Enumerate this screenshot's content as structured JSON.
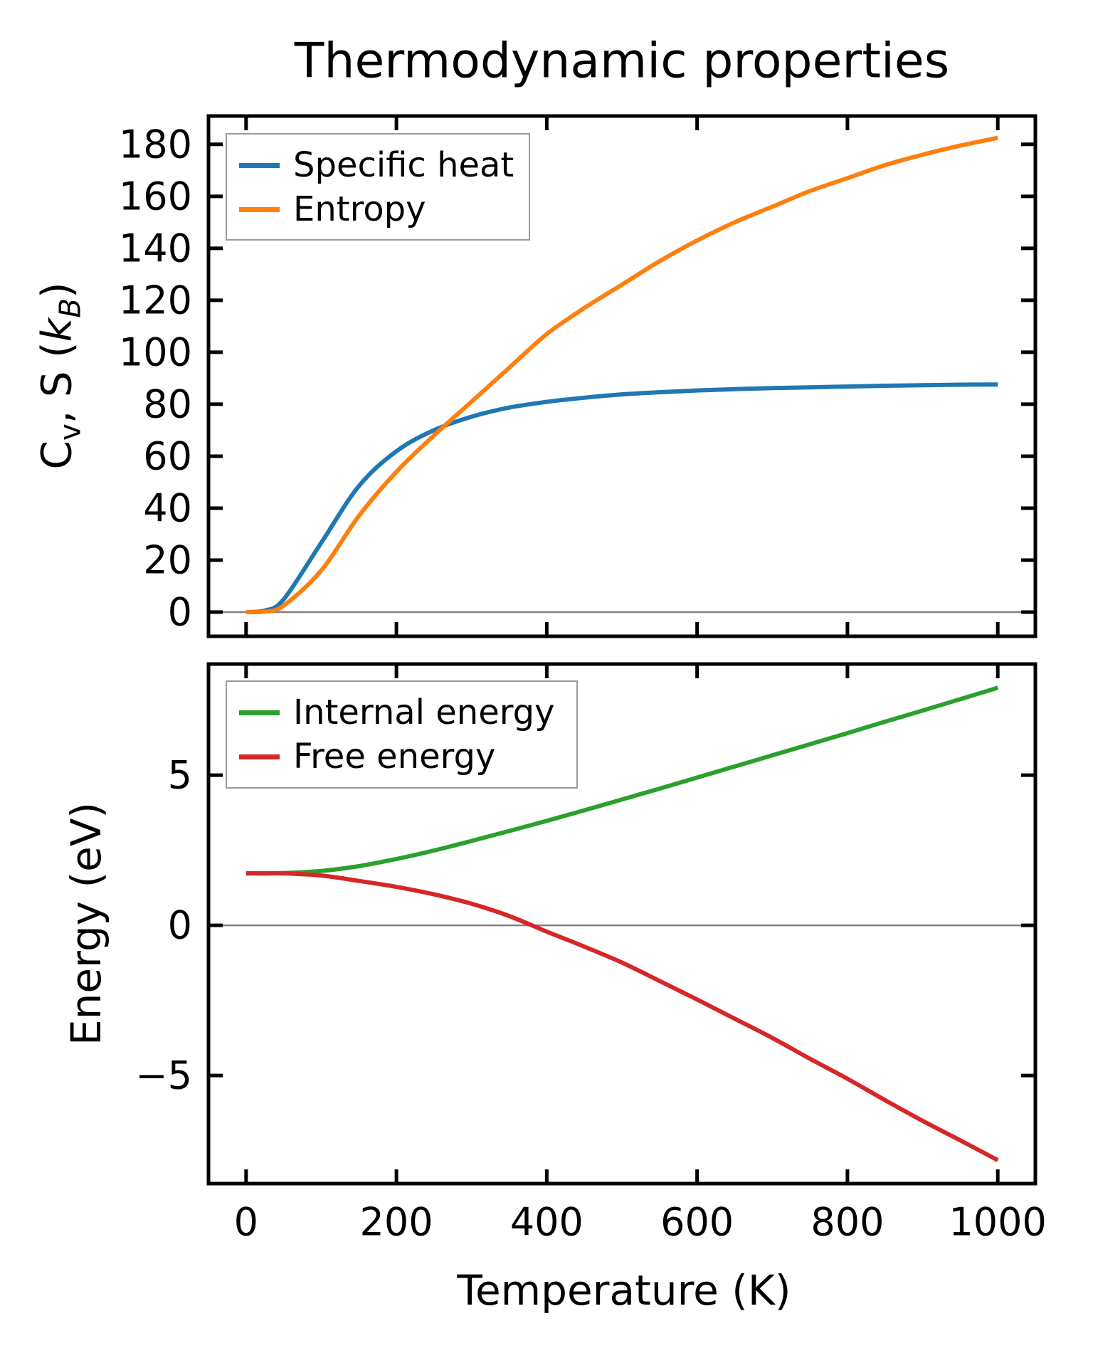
{
  "figure": {
    "title": "Thermodynamic properties",
    "background": "#ffffff",
    "spine_color": "#000000",
    "zero_line_color": "#808080"
  },
  "top_plot": {
    "ylabel_parts": {
      "C": "C",
      "v": "v",
      "mid": ", S (",
      "k": "k",
      "B": "B",
      "close": ")"
    },
    "legend": [
      "Specific heat",
      "Entropy"
    ]
  },
  "bottom_plot": {
    "ylabel": "Energy (eV)",
    "xlabel": "Temperature (K)",
    "legend": [
      "Internal energy",
      "Free energy"
    ]
  },
  "chart_data": [
    {
      "type": "line",
      "title": "Thermodynamic properties",
      "xlabel": "Temperature (K)",
      "ylabel": "C_v, S (k_B)",
      "xlim": [
        -50,
        1050
      ],
      "ylim": [
        -9.3,
        190.9
      ],
      "xticks": [
        0,
        200,
        400,
        600,
        800,
        1000
      ],
      "yticks": [
        0,
        20,
        40,
        60,
        80,
        100,
        120,
        140,
        160,
        180
      ],
      "x_tick_labels_visible": false,
      "grid": false,
      "zero_line": true,
      "legend_position": "upper left",
      "x": [
        0,
        25,
        50,
        100,
        150,
        200,
        250,
        300,
        350,
        400,
        450,
        500,
        550,
        600,
        650,
        700,
        750,
        800,
        850,
        900,
        950,
        1000
      ],
      "series": [
        {
          "name": "Specific heat",
          "color": "#1f77b4",
          "values": [
            0,
            0.6,
            4.9,
            26.7,
            48.5,
            61.9,
            70.0,
            75.2,
            78.7,
            80.9,
            82.5,
            83.8,
            84.6,
            85.3,
            85.8,
            86.2,
            86.5,
            86.8,
            87.1,
            87.3,
            87.5,
            87.6
          ]
        },
        {
          "name": "Entropy",
          "color": "#ff7f0e",
          "values": [
            0,
            0.2,
            2.5,
            16,
            37,
            54,
            68,
            81,
            94,
            107,
            117,
            126,
            135,
            143,
            150,
            156,
            162,
            167,
            172,
            176,
            179.5,
            182.5
          ]
        }
      ]
    },
    {
      "type": "line",
      "title": "",
      "xlabel": "Temperature (K)",
      "ylabel": "Energy (eV)",
      "xlim": [
        -50,
        1050
      ],
      "ylim": [
        -8.6,
        8.7
      ],
      "xticks": [
        0,
        200,
        400,
        600,
        800,
        1000
      ],
      "yticks": [
        -5,
        0,
        5
      ],
      "x_tick_labels_visible": true,
      "grid": false,
      "zero_line": true,
      "legend_position": "upper left",
      "x": [
        0,
        25,
        50,
        100,
        150,
        200,
        250,
        300,
        350,
        400,
        450,
        500,
        550,
        600,
        650,
        700,
        750,
        800,
        850,
        900,
        950,
        1000
      ],
      "series": [
        {
          "name": "Internal energy",
          "color": "#2ca02c",
          "values": [
            1.73,
            1.73,
            1.74,
            1.81,
            1.97,
            2.21,
            2.49,
            2.81,
            3.14,
            3.48,
            3.83,
            4.19,
            4.55,
            4.92,
            5.29,
            5.66,
            6.03,
            6.4,
            6.78,
            7.15,
            7.53,
            7.91
          ]
        },
        {
          "name": "Free energy",
          "color": "#d62728",
          "values": [
            1.73,
            1.73,
            1.73,
            1.66,
            1.48,
            1.28,
            1.03,
            0.72,
            0.31,
            -0.21,
            -0.71,
            -1.24,
            -1.85,
            -2.47,
            -3.11,
            -3.75,
            -4.44,
            -5.11,
            -5.82,
            -6.51,
            -7.16,
            -7.82
          ]
        }
      ]
    }
  ]
}
